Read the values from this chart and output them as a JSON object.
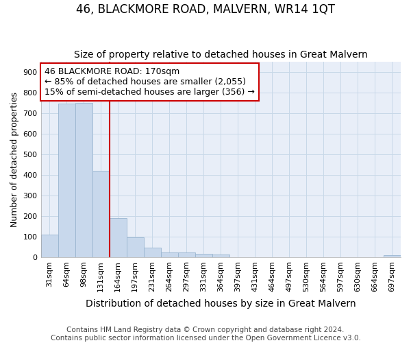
{
  "title": "46, BLACKMORE ROAD, MALVERN, WR14 1QT",
  "subtitle": "Size of property relative to detached houses in Great Malvern",
  "xlabel": "Distribution of detached houses by size in Great Malvern",
  "ylabel": "Number of detached properties",
  "footer_line1": "Contains HM Land Registry data © Crown copyright and database right 2024.",
  "footer_line2": "Contains public sector information licensed under the Open Government Licence v3.0.",
  "bar_labels": [
    "31sqm",
    "64sqm",
    "98sqm",
    "131sqm",
    "164sqm",
    "197sqm",
    "231sqm",
    "264sqm",
    "297sqm",
    "331sqm",
    "364sqm",
    "397sqm",
    "431sqm",
    "464sqm",
    "497sqm",
    "530sqm",
    "564sqm",
    "597sqm",
    "630sqm",
    "664sqm",
    "697sqm"
  ],
  "bar_values": [
    110,
    745,
    750,
    420,
    190,
    95,
    45,
    22,
    22,
    17,
    13,
    0,
    0,
    0,
    0,
    0,
    0,
    0,
    0,
    0,
    8
  ],
  "bar_color": "#c8d8ec",
  "bar_edge_color": "#9ab5d0",
  "highlight_color": "#cc0000",
  "annotation_text_line1": "46 BLACKMORE ROAD: 170sqm",
  "annotation_text_line2": "← 85% of detached houses are smaller (2,055)",
  "annotation_text_line3": "15% of semi-detached houses are larger (356) →",
  "annotation_box_facecolor": "#ffffff",
  "annotation_box_edgecolor": "#cc0000",
  "ylim": [
    0,
    950
  ],
  "yticks": [
    0,
    100,
    200,
    300,
    400,
    500,
    600,
    700,
    800,
    900
  ],
  "grid_color": "#c8d8e8",
  "background_color": "#e8eef8",
  "title_fontsize": 12,
  "subtitle_fontsize": 10,
  "xlabel_fontsize": 10,
  "ylabel_fontsize": 9,
  "tick_fontsize": 8,
  "annotation_fontsize": 9,
  "footer_fontsize": 7.5
}
